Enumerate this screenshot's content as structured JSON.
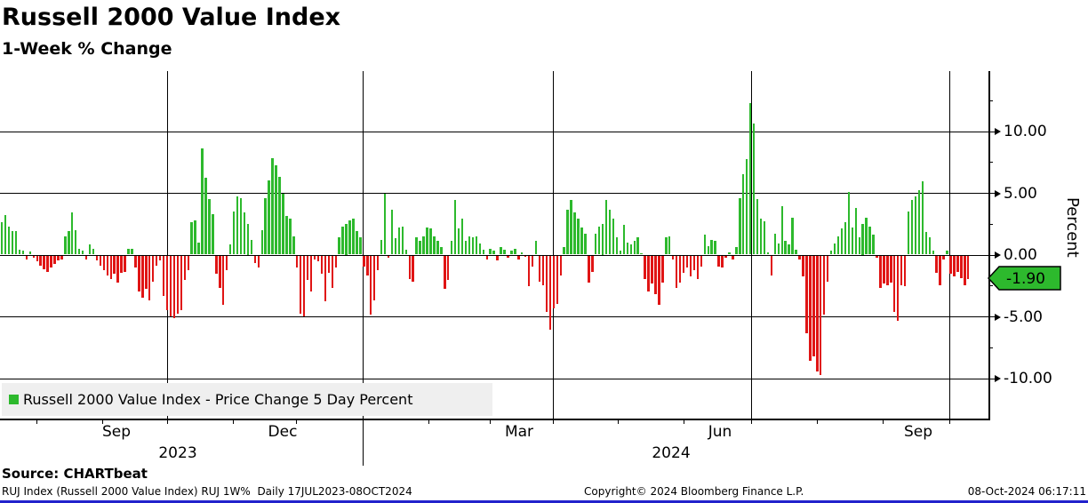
{
  "header": {
    "title": "Russell 2000 Value Index",
    "subtitle": "1-Week % Change"
  },
  "legend": {
    "label": "Russell 2000 Value Index - Price Change 5 Day Percent",
    "swatch_color": "#2db92d"
  },
  "last_value_tag": {
    "value": "-1.90",
    "fill_color": "#2db92d"
  },
  "y_axis": {
    "label": "Percent",
    "ticks": [
      "10.00",
      "5.00",
      "0.00",
      "-5.00",
      "-10.00"
    ]
  },
  "x_axis": {
    "month_labels": [
      "Sep",
      "Dec",
      "Mar",
      "Jun",
      "Sep"
    ],
    "year_labels": [
      "2023",
      "2024"
    ]
  },
  "source_line": "Source: CHARTbeat",
  "footer": {
    "left": "RUJ Index (Russell 2000 Value Index) RUJ 1W%  Daily 17JUL2023-08OCT2024",
    "center": "Copyright© 2024 Bloomberg Finance L.P.",
    "right": "08-Oct-2024 06:17:11"
  },
  "colors": {
    "positive": "#2db92d",
    "negative": "#e01414",
    "grid": "#000000",
    "legend_bg": "#efefef",
    "bottom_bar": "#2222cc"
  },
  "chart_data": {
    "type": "bar",
    "title": "Russell 2000 Value Index",
    "subtitle": "1-Week % Change",
    "series_label": "Russell 2000 Value Index - Price Change 5 Day Percent",
    "x_range": "17JUL2023-08OCT2024",
    "x_tick_labels": [
      "Sep",
      "Dec",
      "Mar",
      "Jun",
      "Sep"
    ],
    "x_year_labels": [
      "2023",
      "2024"
    ],
    "ylabel": "Percent",
    "y_ticks": [
      10,
      5,
      0,
      -5,
      -10
    ],
    "ylim": [
      -13,
      14
    ],
    "grid": true,
    "legend_position": "bottom-left",
    "last_value": -1.9,
    "values": [
      2.6,
      3.2,
      2.3,
      1.9,
      1.9,
      0.4,
      0.3,
      -0.3,
      0.25,
      -0.2,
      -0.5,
      -0.8,
      -1.1,
      -1.3,
      -1.0,
      -0.7,
      -0.4,
      -0.3,
      1.5,
      1.9,
      3.4,
      2.0,
      0.5,
      0.3,
      -0.3,
      0.8,
      0.5,
      -0.4,
      -0.8,
      -1.2,
      -1.6,
      -1.9,
      -1.5,
      -2.2,
      -1.4,
      -1.3,
      0.5,
      0.5,
      -1.0,
      -2.9,
      -3.4,
      -2.7,
      -3.6,
      -2.1,
      -0.8,
      -0.4,
      -3.3,
      -4.4,
      -4.9,
      -5.1,
      -4.7,
      -4.4,
      -2.0,
      -1.2,
      2.6,
      2.8,
      1.0,
      8.6,
      6.2,
      4.5,
      3.3,
      -1.5,
      -2.6,
      -4.0,
      -1.2,
      0.8,
      3.5,
      4.7,
      4.6,
      3.4,
      2.5,
      1.2,
      -0.6,
      -1.0,
      2.0,
      4.6,
      6.0,
      7.8,
      7.2,
      6.3,
      4.9,
      3.1,
      2.9,
      1.5,
      -1.0,
      -4.7,
      -4.9,
      -2.0,
      -2.9,
      -0.3,
      -0.5,
      -1.5,
      -3.7,
      -1.4,
      -2.6,
      -1.0,
      1.4,
      2.3,
      2.5,
      2.8,
      2.9,
      1.9,
      1.4,
      -0.9,
      -1.6,
      -4.8,
      -3.6,
      -1.2,
      1.2,
      4.9,
      -0.2,
      3.6,
      1.3,
      2.2,
      2.3,
      0.4,
      -1.9,
      -2.1,
      1.4,
      1.1,
      1.5,
      2.2,
      2.1,
      1.5,
      1.1,
      0.6,
      -2.7,
      -2.0,
      1.1,
      4.4,
      2.1,
      2.9,
      1.1,
      1.5,
      1.4,
      1.5,
      0.9,
      0.4,
      -0.3,
      0.5,
      0.3,
      -0.4,
      0.6,
      0.4,
      -0.2,
      0.3,
      0.5,
      -0.3,
      0.2,
      -0.1,
      -2.5,
      -0.9,
      1.1,
      -2.1,
      -2.4,
      -4.6,
      -6.0,
      -4.3,
      -3.9,
      -1.6,
      0.6,
      3.6,
      4.4,
      3.4,
      2.9,
      2.2,
      1.7,
      -2.2,
      -1.3,
      1.7,
      2.3,
      2.5,
      4.4,
      3.6,
      2.9,
      1.4,
      0.3,
      2.4,
      1.0,
      0.8,
      1.1,
      1.4,
      0.1,
      -1.9,
      -2.9,
      -2.3,
      -3.1,
      -4.0,
      -2.2,
      1.4,
      1.5,
      -0.3,
      -2.6,
      -2.2,
      -1.4,
      -1.0,
      -1.7,
      -1.2,
      -1.9,
      -0.9,
      1.6,
      0.7,
      1.2,
      1.1,
      -0.9,
      -1.0,
      -0.2,
      0.2,
      -0.3,
      0.6,
      4.6,
      6.5,
      7.7,
      12.3,
      10.6,
      4.5,
      2.9,
      2.7,
      0.15,
      -1.6,
      1.7,
      0.9,
      3.9,
      1.1,
      0.8,
      3.0,
      0.4,
      -0.3,
      -1.7,
      -6.3,
      -8.5,
      -8.2,
      -9.4,
      -9.7,
      -4.8,
      -2.1,
      0.3,
      0.9,
      1.5,
      2.1,
      2.6,
      5.1,
      2.2,
      3.8,
      1.4,
      2.5,
      3.0,
      2.3,
      1.6,
      -0.2,
      -2.6,
      -2.3,
      -2.4,
      -2.2,
      -4.6,
      -5.3,
      -2.4,
      -2.5,
      3.5,
      4.4,
      4.7,
      5.2,
      5.9,
      1.8,
      1.4,
      0.3,
      -1.4,
      -2.4,
      -0.3,
      0.3,
      -1.5,
      -1.7,
      -1.3,
      -1.8,
      -2.4,
      -1.9
    ]
  }
}
